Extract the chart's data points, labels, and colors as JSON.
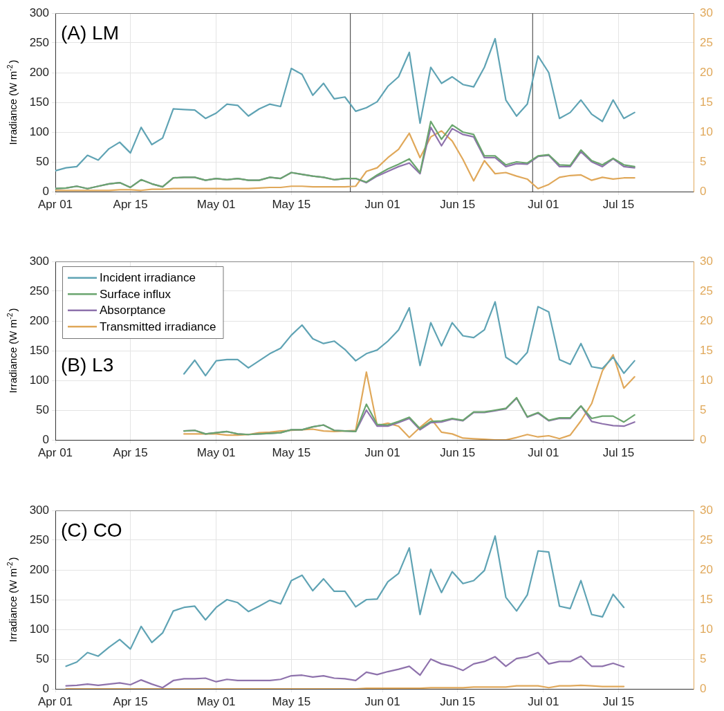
{
  "chart_data": [
    {
      "type": "line",
      "title": "(A) LM",
      "ylabel": "Irradiance (W m$^{-2}$)",
      "x": [
        "--04-01",
        "--04-03",
        "--04-05",
        "--04-07",
        "--04-09",
        "--04-11",
        "--04-13",
        "--04-15",
        "--04-17",
        "--04-19",
        "--04-21",
        "--04-23",
        "--04-25",
        "--04-27",
        "--04-29",
        "--05-01",
        "--05-03",
        "--05-05",
        "--05-07",
        "--05-09",
        "--05-11",
        "--05-13",
        "--05-15",
        "--05-17",
        "--05-19",
        "--05-21",
        "--05-23",
        "--05-25",
        "--05-27",
        "--05-29",
        "--05-31",
        "--06-02",
        "--06-04",
        "--06-06",
        "--06-08",
        "--06-10",
        "--06-12",
        "--06-14",
        "--06-16",
        "--06-18",
        "--06-20",
        "--06-22",
        "--06-24",
        "--06-26",
        "--06-28",
        "--06-30",
        "--07-02",
        "--07-04",
        "--07-06",
        "--07-08",
        "--07-10",
        "--07-12",
        "--07-14",
        "--07-16",
        "--07-18"
      ],
      "series": [
        {
          "color": "#5fa3b4",
          "values": [
            35,
            40,
            42,
            61,
            53,
            72,
            83,
            65,
            108,
            79,
            90,
            139,
            138,
            137,
            123,
            132,
            147,
            145,
            127,
            139,
            147,
            143,
            207,
            197,
            162,
            182,
            156,
            159,
            135,
            141,
            151,
            177,
            193,
            234,
            115,
            209,
            182,
            193,
            180,
            176,
            209,
            257,
            154,
            127,
            147,
            228,
            200,
            123,
            133,
            154,
            130,
            118,
            154,
            123,
            133
          ]
        },
        {
          "color": "#6aa56e",
          "values": [
            5,
            6,
            9,
            5,
            9,
            13,
            15,
            7,
            20,
            13,
            8,
            23,
            24,
            24,
            19,
            22,
            20,
            22,
            19,
            19,
            24,
            22,
            32,
            29,
            26,
            24,
            20,
            22,
            22,
            16,
            28,
            38,
            46,
            55,
            32,
            118,
            88,
            112,
            100,
            96,
            60,
            60,
            45,
            50,
            48,
            60,
            62,
            45,
            44,
            70,
            52,
            45,
            56,
            45,
            42
          ]
        },
        {
          "color": "#8e72ac",
          "values": [
            5,
            6,
            9,
            5,
            9,
            13,
            15,
            7,
            20,
            13,
            8,
            23,
            24,
            24,
            19,
            22,
            20,
            22,
            19,
            19,
            24,
            22,
            32,
            29,
            26,
            24,
            20,
            22,
            22,
            15,
            26,
            34,
            42,
            48,
            30,
            108,
            77,
            106,
            96,
            92,
            57,
            57,
            42,
            47,
            46,
            59,
            61,
            42,
            42,
            67,
            50,
            42,
            55,
            42,
            40
          ]
        },
        {
          "color": "#e0a85a",
          "axis": "y2",
          "values": [
            0.2,
            0.2,
            0.2,
            0.2,
            0.2,
            0.2,
            0.3,
            0.3,
            0.2,
            0.4,
            0.4,
            0.5,
            0.5,
            0.5,
            0.5,
            0.5,
            0.5,
            0.5,
            0.5,
            0.6,
            0.7,
            0.7,
            0.9,
            0.9,
            0.8,
            0.8,
            0.8,
            0.8,
            0.9,
            3.4,
            4.0,
            5.7,
            7.1,
            9.8,
            5.7,
            9.2,
            10.2,
            8.5,
            5.4,
            1.8,
            5.2,
            3.0,
            3.2,
            2.6,
            2.1,
            0.5,
            1.2,
            2.4,
            2.7,
            2.8,
            1.9,
            2.4,
            2.1,
            2.3,
            2.3
          ]
        }
      ],
      "xlim": [
        "--04-01",
        "--07-29"
      ],
      "xticks": [
        {
          "value": "--04-01",
          "label": "Apr 01"
        },
        {
          "value": "--04-15",
          "label": "Apr 15"
        },
        {
          "value": "--05-01",
          "label": "May 01"
        },
        {
          "value": "--05-15",
          "label": "May 15"
        },
        {
          "value": "--06-01",
          "label": "Jun 01"
        },
        {
          "value": "--06-15",
          "label": "Jun 15"
        },
        {
          "value": "--07-01",
          "label": "Jul 01"
        },
        {
          "value": "--07-15",
          "label": "Jul 15"
        }
      ],
      "ylim": [
        0,
        300
      ],
      "yticks": [
        0,
        50,
        100,
        150,
        200,
        250,
        300
      ],
      "y2lim": [
        0,
        30
      ],
      "y2ticks": [
        0,
        5,
        10,
        15,
        20,
        25,
        30
      ],
      "ref_lines": [
        {
          "axis": "x",
          "value": "--05-26",
          "color": "#555555"
        },
        {
          "axis": "x",
          "value": "--06-29",
          "color": "#555555"
        }
      ],
      "grid": true
    },
    {
      "type": "line",
      "title": "(B) L3",
      "ylabel": "Irradiance (W m$^{-2}$)",
      "x": [
        "--04-25",
        "--04-27",
        "--04-29",
        "--05-01",
        "--05-03",
        "--05-05",
        "--05-07",
        "--05-09",
        "--05-11",
        "--05-13",
        "--05-15",
        "--05-17",
        "--05-19",
        "--05-21",
        "--05-23",
        "--05-25",
        "--05-27",
        "--05-29",
        "--05-31",
        "--06-02",
        "--06-04",
        "--06-06",
        "--06-08",
        "--06-10",
        "--06-12",
        "--06-14",
        "--06-16",
        "--06-18",
        "--06-20",
        "--06-22",
        "--06-24",
        "--06-26",
        "--06-28",
        "--06-30",
        "--07-02",
        "--07-04",
        "--07-06",
        "--07-08",
        "--07-10",
        "--07-12",
        "--07-14",
        "--07-16",
        "--07-18"
      ],
      "series": [
        {
          "name": "Incident irradiance",
          "color": "#5fa3b4",
          "values": [
            111,
            134,
            108,
            133,
            135,
            135,
            121,
            133,
            145,
            154,
            176,
            193,
            170,
            162,
            166,
            152,
            133,
            145,
            151,
            166,
            185,
            222,
            125,
            197,
            158,
            197,
            175,
            172,
            185,
            232,
            139,
            127,
            147,
            224,
            215,
            135,
            127,
            162,
            123,
            120,
            139,
            112,
            133
          ]
        },
        {
          "name": "Surface influx",
          "color": "#6aa56e",
          "values": [
            15,
            16,
            10,
            12,
            14,
            10,
            9,
            10,
            11,
            12,
            17,
            17,
            22,
            25,
            16,
            15,
            14,
            60,
            26,
            25,
            31,
            38,
            19,
            31,
            32,
            36,
            33,
            47,
            47,
            50,
            53,
            71,
            39,
            46,
            33,
            37,
            37,
            57,
            36,
            40,
            40,
            30,
            42
          ]
        },
        {
          "name": "Absorptance",
          "color": "#8e72ac",
          "values": [
            15,
            16,
            10,
            12,
            14,
            10,
            9,
            10,
            11,
            12,
            17,
            17,
            22,
            25,
            16,
            15,
            14,
            50,
            23,
            23,
            29,
            36,
            17,
            29,
            30,
            35,
            32,
            46,
            46,
            49,
            52,
            70,
            38,
            45,
            32,
            36,
            36,
            57,
            31,
            27,
            24,
            23,
            30
          ]
        },
        {
          "name": "Transmitted irradiance",
          "color": "#e0a85a",
          "axis": "y2",
          "values": [
            1.0,
            1.0,
            1.0,
            1.0,
            0.8,
            0.8,
            0.9,
            1.2,
            1.3,
            1.5,
            1.6,
            1.7,
            1.8,
            1.5,
            1.4,
            1.5,
            1.6,
            11.4,
            2.4,
            2.8,
            2.3,
            0.4,
            2.1,
            3.6,
            1.3,
            1.0,
            0.3,
            0.2,
            0.1,
            0,
            0,
            0.4,
            0.9,
            0.5,
            0.7,
            0.2,
            0.8,
            3.2,
            6.1,
            11.6,
            14.3,
            8.7,
            10.6
          ]
        }
      ],
      "xlim": [
        "--04-01",
        "--07-29"
      ],
      "xticks": [
        {
          "value": "--04-01",
          "label": "Apr 01"
        },
        {
          "value": "--04-15",
          "label": "Apr 15"
        },
        {
          "value": "--05-01",
          "label": "May 01"
        },
        {
          "value": "--05-15",
          "label": "May 15"
        },
        {
          "value": "--06-01",
          "label": "Jun 01"
        },
        {
          "value": "--06-15",
          "label": "Jun 15"
        },
        {
          "value": "--07-01",
          "label": "Jul 01"
        },
        {
          "value": "--07-15",
          "label": "Jul 15"
        }
      ],
      "ylim": [
        0,
        300
      ],
      "yticks": [
        0,
        50,
        100,
        150,
        200,
        250,
        300
      ],
      "y2lim": [
        0,
        30
      ],
      "y2ticks": [
        0,
        5,
        10,
        15,
        20,
        25,
        30
      ],
      "grid": true,
      "legend": "top left"
    },
    {
      "type": "line",
      "title": "(C) CO",
      "ylabel": "Irradiance (W m$^{-2}$)",
      "x": [
        "--04-03",
        "--04-05",
        "--04-07",
        "--04-09",
        "--04-11",
        "--04-13",
        "--04-15",
        "--04-17",
        "--04-19",
        "--04-21",
        "--04-23",
        "--04-25",
        "--04-27",
        "--04-29",
        "--05-01",
        "--05-03",
        "--05-05",
        "--05-07",
        "--05-09",
        "--05-11",
        "--05-13",
        "--05-15",
        "--05-17",
        "--05-19",
        "--05-21",
        "--05-23",
        "--05-25",
        "--05-27",
        "--05-29",
        "--05-31",
        "--06-02",
        "--06-04",
        "--06-06",
        "--06-08",
        "--06-10",
        "--06-12",
        "--06-14",
        "--06-16",
        "--06-18",
        "--06-20",
        "--06-22",
        "--06-24",
        "--06-26",
        "--06-28",
        "--06-30",
        "--07-02",
        "--07-04",
        "--07-06",
        "--07-08",
        "--07-10",
        "--07-12",
        "--07-14",
        "--07-16"
      ],
      "series": [
        {
          "color": "#5fa3b4",
          "values": [
            38,
            45,
            61,
            55,
            70,
            83,
            67,
            105,
            78,
            94,
            131,
            137,
            139,
            116,
            137,
            150,
            145,
            130,
            139,
            149,
            143,
            182,
            191,
            165,
            185,
            164,
            164,
            138,
            150,
            151,
            180,
            194,
            237,
            125,
            201,
            162,
            197,
            177,
            182,
            199,
            257,
            154,
            131,
            158,
            232,
            230,
            139,
            135,
            182,
            125,
            121,
            159,
            137
          ]
        },
        {
          "color": "#8e72ac",
          "values": [
            5,
            6,
            8,
            6,
            8,
            10,
            7,
            15,
            8,
            2,
            14,
            17,
            17,
            18,
            12,
            16,
            14,
            14,
            14,
            14,
            16,
            22,
            23,
            20,
            22,
            18,
            17,
            14,
            28,
            24,
            29,
            33,
            38,
            23,
            50,
            42,
            38,
            31,
            42,
            46,
            54,
            38,
            51,
            54,
            61,
            42,
            46,
            46,
            55,
            38,
            38,
            43,
            37
          ]
        },
        {
          "color": "#e0a85a",
          "axis": "y2",
          "values": [
            0,
            0,
            0,
            0,
            0,
            0,
            0,
            0,
            0,
            0,
            0,
            0,
            0,
            0,
            0,
            0,
            0,
            0,
            0,
            0,
            0,
            0,
            0,
            0,
            0,
            0,
            0,
            0,
            0.1,
            0.1,
            0.1,
            0.1,
            0.1,
            0.1,
            0.2,
            0.2,
            0.2,
            0.2,
            0.3,
            0.3,
            0.3,
            0.3,
            0.5,
            0.5,
            0.5,
            0.2,
            0.5,
            0.5,
            0.6,
            0.5,
            0.4,
            0.4,
            0.4
          ]
        }
      ],
      "xlim": [
        "--04-01",
        "--07-29"
      ],
      "xticks": [
        {
          "value": "--04-01",
          "label": "Apr 01"
        },
        {
          "value": "--04-15",
          "label": "Apr 15"
        },
        {
          "value": "--05-01",
          "label": "May 01"
        },
        {
          "value": "--05-15",
          "label": "May 15"
        },
        {
          "value": "--06-01",
          "label": "Jun 01"
        },
        {
          "value": "--06-15",
          "label": "Jun 15"
        },
        {
          "value": "--07-01",
          "label": "Jul 01"
        },
        {
          "value": "--07-15",
          "label": "Jul 15"
        }
      ],
      "ylim": [
        0,
        300
      ],
      "yticks": [
        0,
        50,
        100,
        150,
        200,
        250,
        300
      ],
      "y2lim": [
        0,
        30
      ],
      "y2ticks": [
        0,
        5,
        10,
        15,
        20,
        25,
        30
      ],
      "grid": true
    }
  ]
}
